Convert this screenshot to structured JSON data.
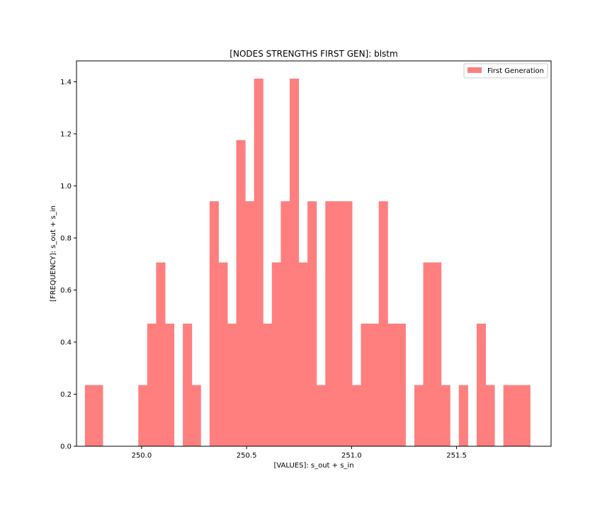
{
  "chart_data": {
    "type": "bar",
    "title": "[NODES STRENGTHS FIRST GEN]: blstm",
    "xlabel": "[VALUES]: s_out + s_in",
    "ylabel": "[FREQUENCY]: s_out + s_in",
    "xlim": [
      249.69,
      251.95
    ],
    "ylim": [
      0,
      1.48
    ],
    "grid": false,
    "legend_position": "top-right",
    "bar_color": "#ff7f7f",
    "x_ticks": [
      {
        "value": 250.0,
        "label": "250.0"
      },
      {
        "value": 250.5,
        "label": "250.5"
      },
      {
        "value": 251.0,
        "label": "251.0"
      },
      {
        "value": 251.5,
        "label": "251.5"
      }
    ],
    "y_ticks": [
      {
        "value": 0.0,
        "label": "0.0"
      },
      {
        "value": 0.2,
        "label": "0.2"
      },
      {
        "value": 0.4,
        "label": "0.4"
      },
      {
        "value": 0.6,
        "label": "0.6"
      },
      {
        "value": 0.8,
        "label": "0.8"
      },
      {
        "value": 1.0,
        "label": "1.0"
      },
      {
        "value": 1.2,
        "label": "1.2"
      },
      {
        "value": 1.4,
        "label": "1.4"
      }
    ],
    "bin_start": 249.73,
    "bin_width": 0.0424,
    "series": [
      {
        "name": "First Generation",
        "values": [
          0.235,
          0.235,
          0,
          0,
          0,
          0,
          0.235,
          0.471,
          0.706,
          0.471,
          0,
          0.471,
          0.235,
          0,
          0.941,
          0.706,
          0.471,
          1.176,
          0.941,
          1.412,
          0.471,
          0.706,
          0.941,
          1.412,
          0.706,
          0.941,
          0.235,
          0.941,
          0.941,
          0.941,
          0.235,
          0.471,
          0.471,
          0.941,
          0.471,
          0.471,
          0,
          0.235,
          0.706,
          0.706,
          0.235,
          0,
          0.235,
          0,
          0.471,
          0.235,
          0,
          0.235,
          0.235,
          0.235
        ]
      }
    ]
  }
}
